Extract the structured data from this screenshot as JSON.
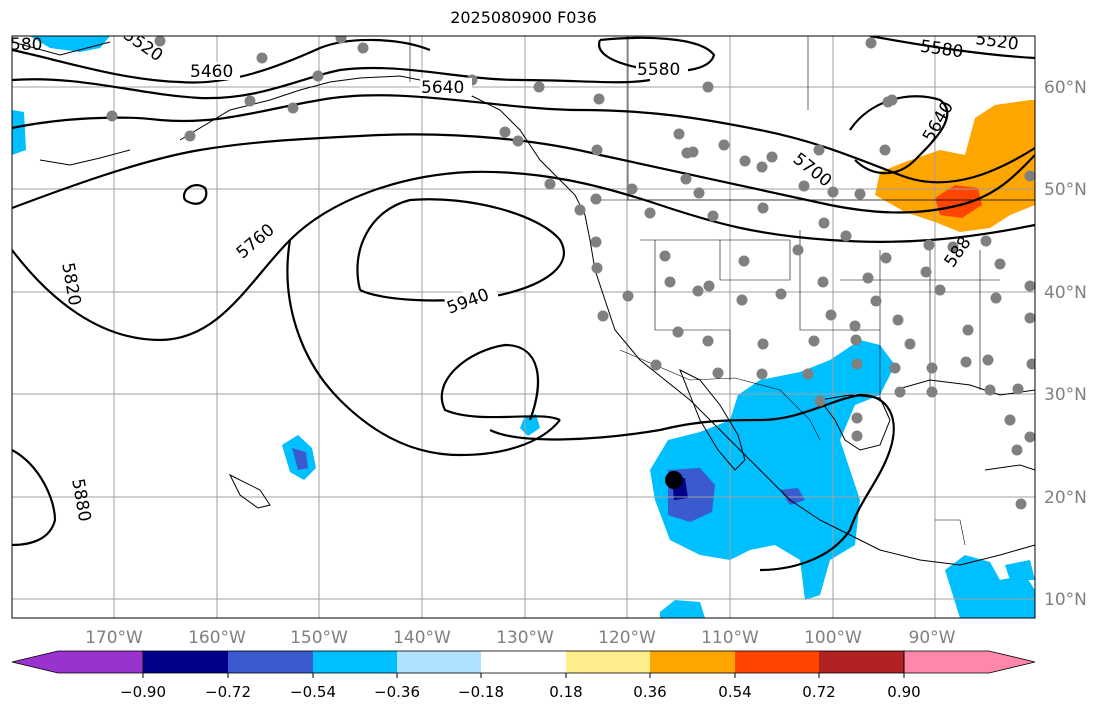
{
  "title": "2025080900 F036",
  "lon_labels": [
    "170°W",
    "160°W",
    "150°W",
    "140°W",
    "130°W",
    "120°W",
    "110°W",
    "100°W",
    "90°W"
  ],
  "lat_labels": [
    "60°N",
    "50°N",
    "40°N",
    "30°N",
    "20°N",
    "10°N"
  ],
  "contour_labels": [
    "5460",
    "5520",
    "5580",
    "5640",
    "5700",
    "5760",
    "5820",
    "5880",
    "5940",
    "580",
    "5580",
    "5640",
    "5520",
    "588"
  ],
  "colorbar": {
    "ticks": [
      "−0.90",
      "−0.72",
      "−0.54",
      "−0.36",
      "−0.18",
      "0.18",
      "0.36",
      "0.54",
      "0.72",
      "0.90"
    ],
    "colors": [
      "#9a32cd",
      "#00008b",
      "#3a5bd0",
      "#00bfff",
      "#b0e2ff",
      "#ffffff",
      "#ffec8b",
      "#ffa500",
      "#ff4500",
      "#b22222",
      "#ff88aa"
    ]
  },
  "colors": {
    "gridline": "#a0a0a0",
    "coast": "#000000",
    "contour": "#000000",
    "station": "#808080",
    "label_gray": "#808080"
  }
}
